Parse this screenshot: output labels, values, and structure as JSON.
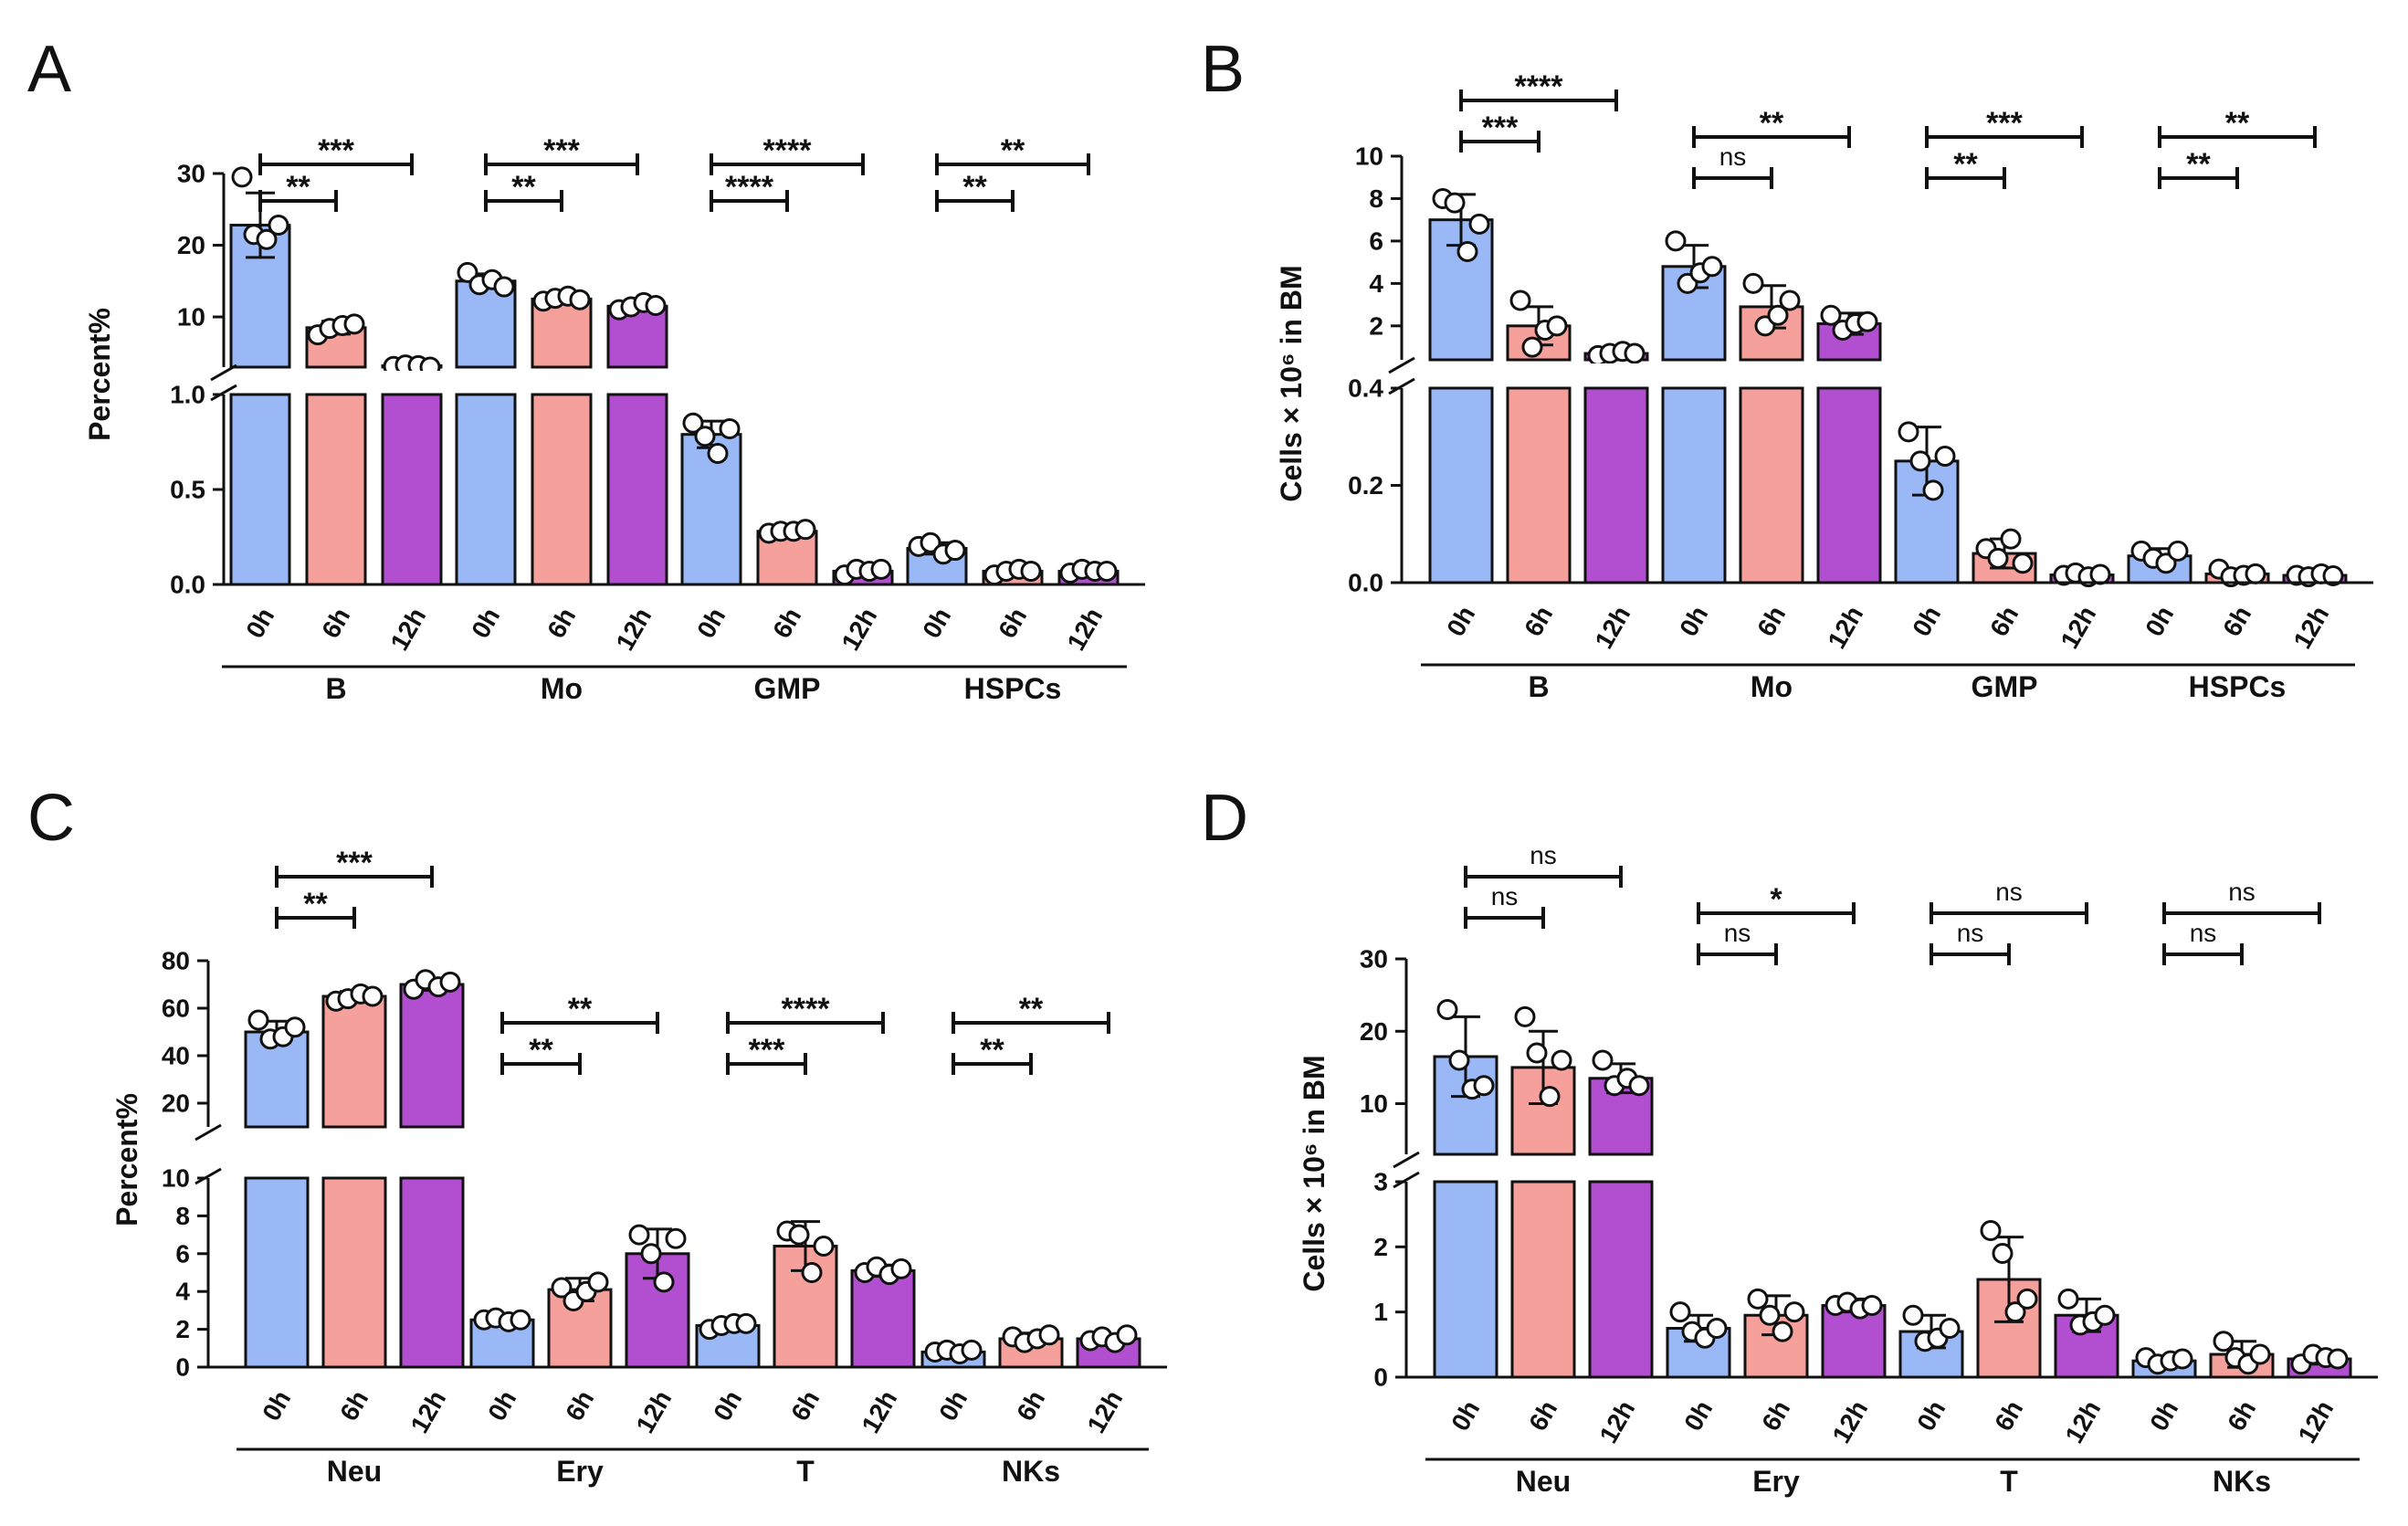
{
  "figure": {
    "panel_letters": [
      "A",
      "B",
      "C",
      "D"
    ],
    "colors": {
      "0h": "#99b8f5",
      "6h": "#f5a09a",
      "12h": "#b24fd0",
      "axis": "#111111"
    },
    "time_labels": [
      "0h",
      "6h",
      "12h"
    ]
  },
  "chart_data": [
    {
      "panel": "A",
      "type": "bar",
      "ylabel": "Percent%",
      "group_labels": [
        "B",
        "Mo",
        "GMP",
        "HSPCs"
      ],
      "categories": [
        "0h",
        "6h",
        "12h"
      ],
      "lower_axis": {
        "range": [
          0,
          1.0
        ],
        "ticks": [
          "0.0",
          "0.5",
          "1.0"
        ],
        "tick_values": [
          0,
          0.5,
          1.0
        ]
      },
      "upper_axis": {
        "range": [
          3,
          30
        ],
        "ticks": [
          "10",
          "20",
          "30"
        ],
        "tick_values": [
          10,
          20,
          30
        ]
      },
      "groups": [
        {
          "name": "B",
          "means": [
            22.8,
            8.5,
            3.2
          ],
          "errors": [
            4.5,
            0.9,
            0.4
          ],
          "points": [
            [
              29.5,
              21.5,
              20.8,
              22.8
            ],
            [
              7.5,
              8.4,
              8.8,
              9.0
            ],
            [
              3.1,
              3.3,
              3.2,
              3.0
            ]
          ]
        },
        {
          "name": "Mo",
          "means": [
            15.0,
            12.5,
            11.5
          ],
          "errors": [
            1.0,
            0.5,
            0.6
          ],
          "points": [
            [
              16.2,
              14.5,
              15.2,
              14.2
            ],
            [
              12.2,
              12.6,
              12.9,
              12.4
            ],
            [
              11.0,
              11.4,
              12.0,
              11.6
            ]
          ]
        },
        {
          "name": "GMP",
          "means": [
            0.79,
            0.28,
            0.07
          ],
          "errors": [
            0.07,
            0.01,
            0.02
          ],
          "points": [
            [
              0.85,
              0.78,
              0.69,
              0.82
            ],
            [
              0.27,
              0.28,
              0.28,
              0.29
            ],
            [
              0.05,
              0.08,
              0.07,
              0.08
            ]
          ]
        },
        {
          "name": "HSPCs",
          "means": [
            0.19,
            0.07,
            0.07
          ],
          "errors": [
            0.03,
            0.02,
            0.02
          ],
          "points": [
            [
              0.2,
              0.22,
              0.16,
              0.18
            ],
            [
              0.05,
              0.07,
              0.08,
              0.07
            ],
            [
              0.06,
              0.08,
              0.07,
              0.07
            ]
          ]
        }
      ],
      "significance": [
        {
          "group": "B",
          "pairs": [
            [
              "0h",
              "6h",
              "**"
            ],
            [
              "0h",
              "12h",
              "***"
            ]
          ]
        },
        {
          "group": "Mo",
          "pairs": [
            [
              "0h",
              "6h",
              "**"
            ],
            [
              "0h",
              "12h",
              "***"
            ]
          ]
        },
        {
          "group": "GMP",
          "pairs": [
            [
              "0h",
              "6h",
              "****"
            ],
            [
              "0h",
              "12h",
              "****"
            ]
          ]
        },
        {
          "group": "HSPCs",
          "pairs": [
            [
              "0h",
              "6h",
              "**"
            ],
            [
              "0h",
              "12h",
              "**"
            ]
          ]
        }
      ]
    },
    {
      "panel": "B",
      "type": "bar",
      "ylabel": "Cells × 10⁶ in BM",
      "group_labels": [
        "B",
        "Mo",
        "GMP",
        "HSPCs"
      ],
      "categories": [
        "0h",
        "6h",
        "12h"
      ],
      "lower_axis": {
        "range": [
          0,
          0.4
        ],
        "ticks": [
          "0.0",
          "0.2",
          "0.4"
        ],
        "tick_values": [
          0,
          0.2,
          0.4
        ]
      },
      "upper_axis": {
        "range": [
          0.4,
          10
        ],
        "ticks": [
          "2",
          "4",
          "6",
          "8",
          "10"
        ],
        "tick_values": [
          2,
          4,
          6,
          8,
          10
        ]
      },
      "groups": [
        {
          "name": "B",
          "means": [
            7.0,
            2.0,
            0.7
          ],
          "errors": [
            1.2,
            0.9,
            0.2
          ],
          "points": [
            [
              8.0,
              7.8,
              5.5,
              6.8
            ],
            [
              3.2,
              1.0,
              1.8,
              2.0
            ],
            [
              0.6,
              0.7,
              0.8,
              0.7
            ]
          ]
        },
        {
          "name": "Mo",
          "means": [
            4.8,
            2.9,
            2.1
          ],
          "errors": [
            1.0,
            1.0,
            0.5
          ],
          "points": [
            [
              6.0,
              4.0,
              4.5,
              4.8
            ],
            [
              4.0,
              2.0,
              2.5,
              3.2
            ],
            [
              2.5,
              1.8,
              2.1,
              2.2
            ]
          ]
        },
        {
          "name": "GMP",
          "means": [
            0.25,
            0.06,
            0.016
          ],
          "errors": [
            0.07,
            0.03,
            0.005
          ],
          "points": [
            [
              0.31,
              0.25,
              0.19,
              0.26
            ],
            [
              0.07,
              0.05,
              0.09,
              0.04
            ],
            [
              0.015,
              0.02,
              0.012,
              0.017
            ]
          ]
        },
        {
          "name": "HSPCs",
          "means": [
            0.055,
            0.018,
            0.015
          ],
          "errors": [
            0.015,
            0.01,
            0.004
          ],
          "points": [
            [
              0.065,
              0.05,
              0.04,
              0.065
            ],
            [
              0.028,
              0.012,
              0.015,
              0.018
            ],
            [
              0.015,
              0.012,
              0.018,
              0.014
            ]
          ]
        }
      ],
      "significance": [
        {
          "group": "B",
          "pairs": [
            [
              "0h",
              "6h",
              "***"
            ],
            [
              "0h",
              "12h",
              "****"
            ]
          ]
        },
        {
          "group": "Mo",
          "pairs": [
            [
              "0h",
              "6h",
              "ns"
            ],
            [
              "0h",
              "12h",
              "**"
            ]
          ]
        },
        {
          "group": "GMP",
          "pairs": [
            [
              "0h",
              "6h",
              "**"
            ],
            [
              "0h",
              "12h",
              "***"
            ]
          ]
        },
        {
          "group": "HSPCs",
          "pairs": [
            [
              "0h",
              "6h",
              "**"
            ],
            [
              "0h",
              "12h",
              "**"
            ]
          ]
        }
      ]
    },
    {
      "panel": "C",
      "type": "bar",
      "ylabel": "Percent%",
      "group_labels": [
        "Neu",
        "Ery",
        "T",
        "NKs"
      ],
      "categories": [
        "0h",
        "6h",
        "12h"
      ],
      "lower_axis": {
        "range": [
          0,
          10
        ],
        "ticks": [
          "0",
          "2",
          "4",
          "6",
          "8",
          "10"
        ],
        "tick_values": [
          0,
          2,
          4,
          6,
          8,
          10
        ]
      },
      "upper_axis": {
        "range": [
          10,
          80
        ],
        "ticks": [
          "20",
          "40",
          "60",
          "80"
        ],
        "tick_values": [
          20,
          40,
          60,
          80
        ]
      },
      "groups": [
        {
          "name": "Neu",
          "means": [
            50,
            65,
            70
          ],
          "errors": [
            4.5,
            2.0,
            2.5
          ],
          "points": [
            [
              55,
              47,
              48,
              52
            ],
            [
              63,
              64,
              66,
              65
            ],
            [
              68,
              72,
              69,
              71
            ]
          ]
        },
        {
          "name": "Ery",
          "means": [
            2.5,
            4.1,
            6.0
          ],
          "errors": [
            0.2,
            0.6,
            1.3
          ],
          "points": [
            [
              2.5,
              2.6,
              2.4,
              2.5
            ],
            [
              4.2,
              3.5,
              4.0,
              4.5
            ],
            [
              7.0,
              6.0,
              4.5,
              6.8
            ]
          ]
        },
        {
          "name": "T",
          "means": [
            2.2,
            6.4,
            5.1
          ],
          "errors": [
            0.2,
            1.3,
            0.3
          ],
          "points": [
            [
              2.0,
              2.2,
              2.3,
              2.3
            ],
            [
              7.2,
              7.0,
              5.0,
              6.4
            ],
            [
              5.0,
              5.3,
              4.9,
              5.2
            ]
          ]
        },
        {
          "name": "NKs",
          "means": [
            0.8,
            1.5,
            1.5
          ],
          "errors": [
            0.2,
            0.3,
            0.2
          ],
          "points": [
            [
              0.8,
              0.9,
              0.7,
              0.9
            ],
            [
              1.6,
              1.3,
              1.5,
              1.7
            ],
            [
              1.4,
              1.6,
              1.3,
              1.7
            ]
          ]
        }
      ],
      "significance": [
        {
          "group": "Neu",
          "pairs": [
            [
              "0h",
              "6h",
              "**"
            ],
            [
              "0h",
              "12h",
              "***"
            ]
          ]
        },
        {
          "group": "Ery",
          "pairs": [
            [
              "0h",
              "6h",
              "**"
            ],
            [
              "0h",
              "12h",
              "**"
            ]
          ]
        },
        {
          "group": "T",
          "pairs": [
            [
              "0h",
              "6h",
              "***"
            ],
            [
              "0h",
              "12h",
              "****"
            ]
          ]
        },
        {
          "group": "NKs",
          "pairs": [
            [
              "0h",
              "6h",
              "**"
            ],
            [
              "0h",
              "12h",
              "**"
            ]
          ]
        }
      ]
    },
    {
      "panel": "D",
      "type": "bar",
      "ylabel": "Cells × 10⁶ in BM",
      "group_labels": [
        "Neu",
        "Ery",
        "T",
        "NKs"
      ],
      "categories": [
        "0h",
        "6h",
        "12h"
      ],
      "lower_axis": {
        "range": [
          0,
          3
        ],
        "ticks": [
          "0",
          "1",
          "2",
          "3"
        ],
        "tick_values": [
          0,
          1,
          2,
          3
        ]
      },
      "upper_axis": {
        "range": [
          3,
          30
        ],
        "ticks": [
          "10",
          "20",
          "30"
        ],
        "tick_values": [
          10,
          20,
          30
        ]
      },
      "groups": [
        {
          "name": "Neu",
          "means": [
            16.5,
            15.0,
            13.5
          ],
          "errors": [
            5.5,
            5.0,
            2.0
          ],
          "points": [
            [
              23.0,
              16.0,
              12.0,
              12.5
            ],
            [
              22.0,
              17.0,
              11.0,
              16.0
            ],
            [
              16.0,
              12.5,
              13.5,
              12.5
            ]
          ]
        },
        {
          "name": "Ery",
          "means": [
            0.75,
            0.95,
            1.1
          ],
          "errors": [
            0.2,
            0.3,
            0.1
          ],
          "points": [
            [
              1.0,
              0.7,
              0.6,
              0.75
            ],
            [
              1.2,
              0.95,
              0.7,
              1.0
            ],
            [
              1.1,
              1.15,
              1.05,
              1.1
            ]
          ]
        },
        {
          "name": "T",
          "means": [
            0.7,
            1.5,
            0.95
          ],
          "errors": [
            0.25,
            0.65,
            0.25
          ],
          "points": [
            [
              0.95,
              0.55,
              0.6,
              0.75
            ],
            [
              2.25,
              1.9,
              1.0,
              1.2
            ],
            [
              1.2,
              0.8,
              0.85,
              0.95
            ]
          ]
        },
        {
          "name": "NKs",
          "means": [
            0.25,
            0.35,
            0.28
          ],
          "errors": [
            0.05,
            0.2,
            0.08
          ],
          "points": [
            [
              0.3,
              0.2,
              0.25,
              0.28
            ],
            [
              0.55,
              0.3,
              0.2,
              0.35
            ],
            [
              0.2,
              0.35,
              0.3,
              0.28
            ]
          ]
        }
      ],
      "significance": [
        {
          "group": "Neu",
          "pairs": [
            [
              "0h",
              "6h",
              "ns"
            ],
            [
              "0h",
              "12h",
              "ns"
            ]
          ]
        },
        {
          "group": "Ery",
          "pairs": [
            [
              "0h",
              "6h",
              "ns"
            ],
            [
              "0h",
              "12h",
              "*"
            ]
          ]
        },
        {
          "group": "T",
          "pairs": [
            [
              "0h",
              "6h",
              "ns"
            ],
            [
              "0h",
              "12h",
              "ns"
            ]
          ]
        },
        {
          "group": "NKs",
          "pairs": [
            [
              "0h",
              "6h",
              "ns"
            ],
            [
              "0h",
              "12h",
              "ns"
            ]
          ]
        }
      ]
    }
  ]
}
